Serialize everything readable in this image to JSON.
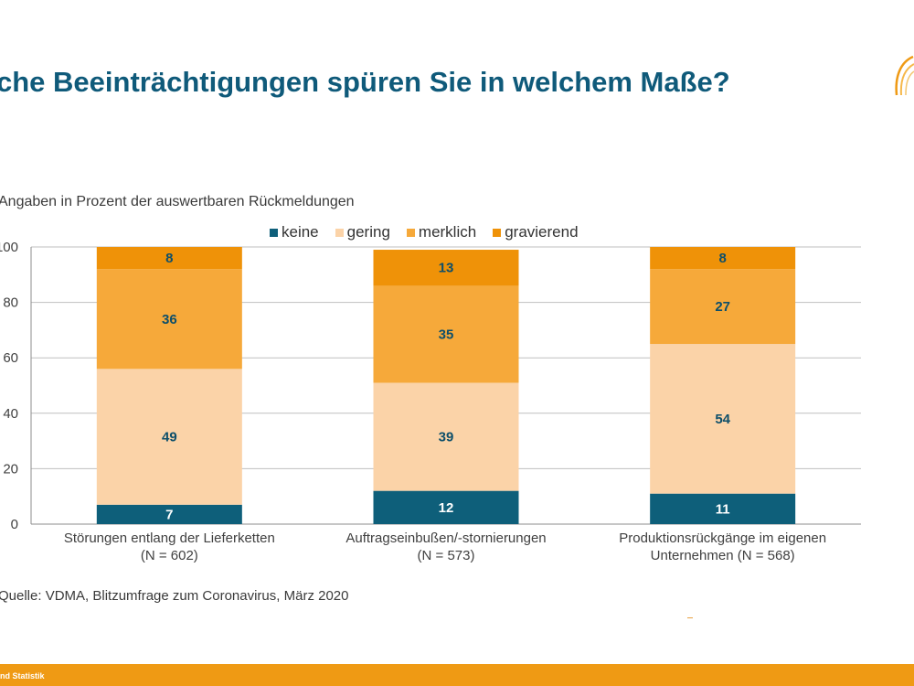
{
  "page": {
    "title": "che Beeinträchtigungen spüren Sie in welchem Maße?",
    "subtitle": "Angaben in Prozent der auswertbaren Rückmeldungen",
    "source": "Quelle: VDMA, Blitzumfrage zum Coronavirus, März 2020",
    "footer_text": "nd Statistik",
    "logo_icon": "wheat-arc-logo-icon",
    "colors": {
      "title": "#0f5a7a",
      "footer": "#ef9a14"
    }
  },
  "chart_data": {
    "type": "bar",
    "stacked": true,
    "categories": [
      [
        "Störungen entlang der Lieferketten",
        "(N = 602)"
      ],
      [
        "Auftragseinbußen/-stornierungen",
        "(N = 573)"
      ],
      [
        "Produktionsrückgänge im eigenen",
        "Unternehmen (N = 568)"
      ]
    ],
    "series": [
      {
        "name": "keine",
        "color": "#0e5f7a",
        "label_color": "#ffffff",
        "values": [
          7,
          12,
          11
        ]
      },
      {
        "name": "gering",
        "color": "#fbd3a8",
        "label_color": "#0e4f6a",
        "values": [
          49,
          39,
          54
        ]
      },
      {
        "name": "merklich",
        "color": "#f6a93a",
        "label_color": "#0e4f6a",
        "values": [
          36,
          35,
          27
        ]
      },
      {
        "name": "gravierend",
        "color": "#ef9208",
        "label_color": "#0e4f6a",
        "values": [
          8,
          13,
          8
        ]
      }
    ],
    "ylim": [
      0,
      100
    ],
    "yticks": [
      0,
      20,
      40,
      60,
      80,
      100
    ],
    "grid": true,
    "legend_position": "top-center",
    "title": "che Beeinträchtigungen spüren Sie in welchem Maße?",
    "xlabel": "",
    "ylabel": ""
  }
}
